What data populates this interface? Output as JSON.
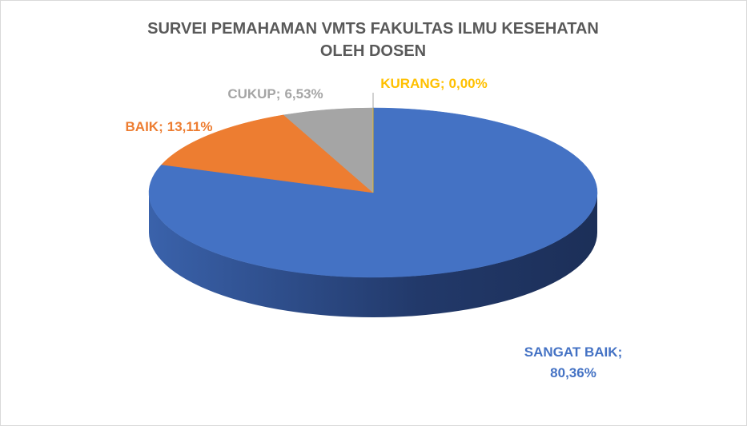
{
  "chart_data": {
    "type": "pie",
    "title": [
      "SURVEI PEMAHAMAN VMTS FAKULTAS ILMU KESEHATAN",
      "OLEH DOSEN"
    ],
    "categories": [
      "SANGAT BAIK",
      "BAIK",
      "CUKUP",
      "KURANG"
    ],
    "values": [
      80.36,
      13.11,
      6.53,
      0.0
    ],
    "value_labels": [
      "80,36%",
      "13,11%",
      "6,53%",
      "0,00%"
    ],
    "label_separator": ";",
    "colors": [
      "#4472c4",
      "#ed7d31",
      "#a5a5a5",
      "#ffc000"
    ]
  }
}
